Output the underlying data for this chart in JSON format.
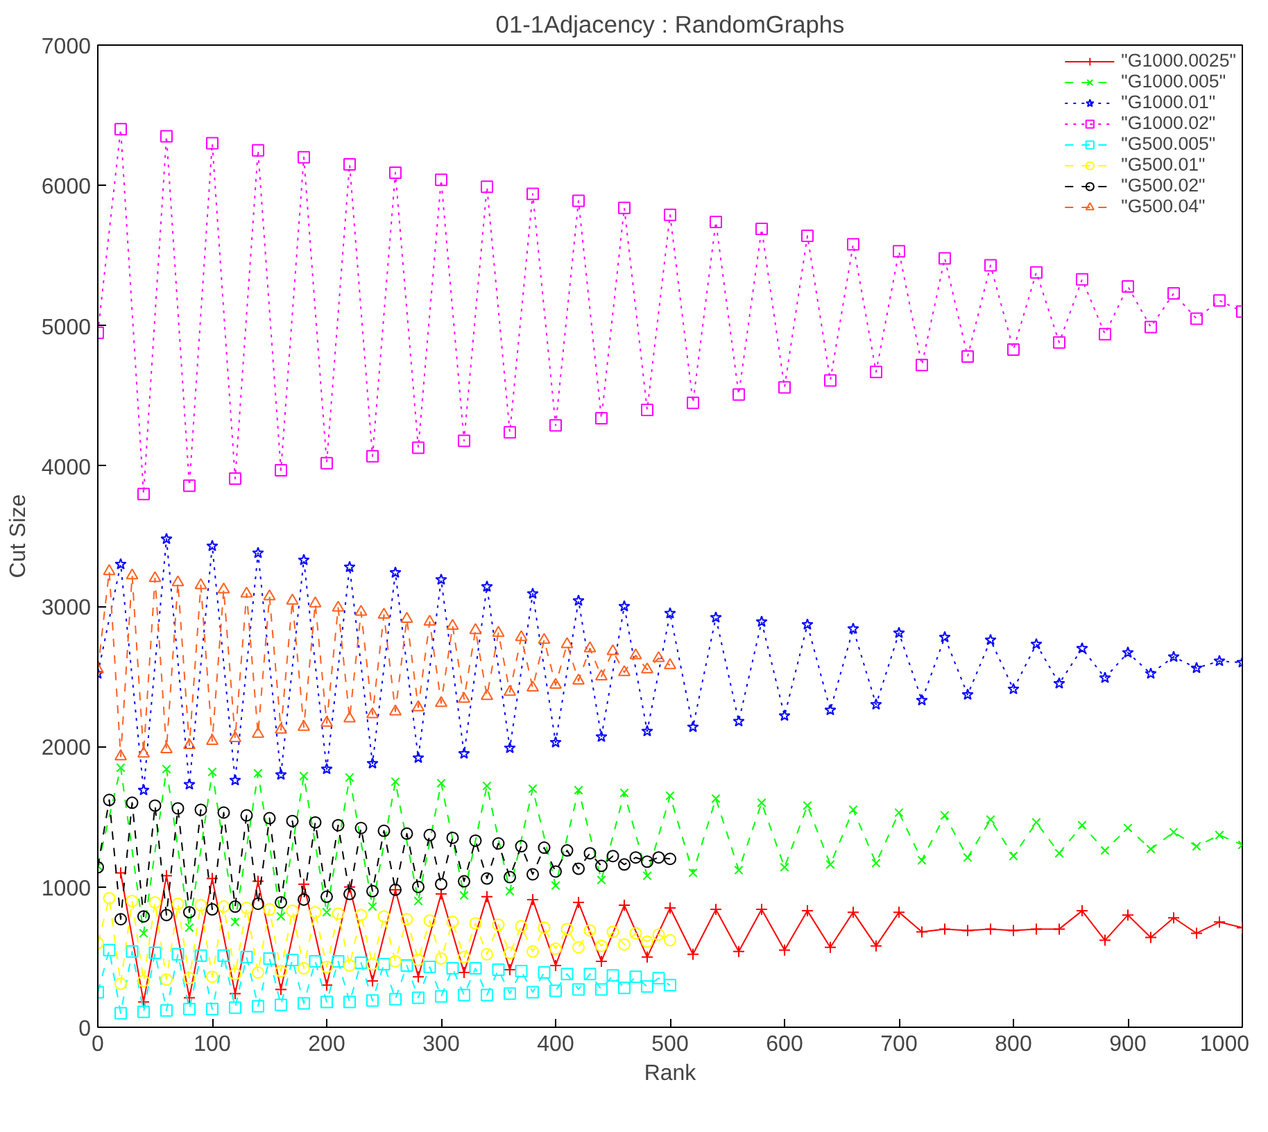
{
  "chart_data": {
    "type": "line",
    "title": "01-1Adjacency : RandomGraphs",
    "xlabel": "Rank",
    "ylabel": "Cut Size",
    "xlim": [
      0,
      1000
    ],
    "ylim": [
      0,
      7000
    ],
    "xticks": [
      0,
      100,
      200,
      300,
      400,
      500,
      600,
      700,
      800,
      900,
      1000
    ],
    "yticks": [
      0,
      1000,
      2000,
      3000,
      4000,
      5000,
      6000,
      7000
    ],
    "grid": false,
    "legend": "top right",
    "series": [
      {
        "name": "\"G1000.0025\"",
        "color": "#ff0000",
        "marker": "cross",
        "line_style": "solid",
        "x": [
          20,
          40,
          60,
          80,
          100,
          120,
          140,
          160,
          180,
          200,
          220,
          240,
          260,
          280,
          300,
          320,
          340,
          360,
          380,
          400,
          420,
          440,
          460,
          480,
          500,
          520,
          540,
          560,
          580,
          600,
          620,
          640,
          660,
          680,
          700,
          720,
          740,
          760,
          780,
          800,
          820,
          840,
          860,
          880,
          900,
          920,
          940,
          960,
          980,
          1000
        ],
        "values": [
          1100,
          180,
          1080,
          210,
          1060,
          240,
          1040,
          270,
          1020,
          300,
          1000,
          330,
          980,
          360,
          950,
          390,
          930,
          410,
          910,
          440,
          890,
          470,
          870,
          500,
          850,
          520,
          840,
          540,
          840,
          550,
          830,
          570,
          820,
          580,
          820,
          680,
          700,
          690,
          700,
          690,
          700,
          700,
          830,
          620,
          800,
          640,
          780,
          670,
          750,
          710
        ]
      },
      {
        "name": "\"G1000.005\"",
        "color": "#00ff00",
        "marker": "x",
        "line_style": "dashed",
        "x": [
          0,
          20,
          40,
          60,
          80,
          100,
          120,
          140,
          160,
          180,
          200,
          220,
          240,
          260,
          280,
          300,
          320,
          340,
          360,
          380,
          400,
          420,
          440,
          460,
          480,
          500,
          520,
          540,
          560,
          580,
          600,
          620,
          640,
          660,
          680,
          700,
          720,
          740,
          760,
          780,
          800,
          820,
          840,
          860,
          880,
          900,
          920,
          940,
          960,
          980,
          1000
        ],
        "values": [
          1150,
          1850,
          670,
          1840,
          710,
          1820,
          750,
          1810,
          790,
          1790,
          820,
          1780,
          860,
          1750,
          900,
          1740,
          940,
          1720,
          970,
          1700,
          1010,
          1690,
          1050,
          1670,
          1080,
          1650,
          1100,
          1630,
          1120,
          1600,
          1140,
          1580,
          1160,
          1550,
          1170,
          1530,
          1190,
          1510,
          1210,
          1480,
          1220,
          1460,
          1240,
          1440,
          1260,
          1420,
          1270,
          1390,
          1290,
          1370,
          1300
        ]
      },
      {
        "name": "\"G1000.01\"",
        "color": "#0000ff",
        "marker": "star",
        "line_style": "dotted",
        "x": [
          0,
          20,
          40,
          60,
          80,
          100,
          120,
          140,
          160,
          180,
          200,
          220,
          240,
          260,
          280,
          300,
          320,
          340,
          360,
          380,
          400,
          420,
          440,
          460,
          480,
          500,
          520,
          540,
          560,
          580,
          600,
          620,
          640,
          660,
          680,
          700,
          720,
          740,
          760,
          780,
          800,
          820,
          840,
          860,
          880,
          900,
          920,
          940,
          960,
          980,
          1000
        ],
        "values": [
          2520,
          3300,
          1690,
          3480,
          1730,
          3430,
          1760,
          3380,
          1800,
          3330,
          1840,
          3280,
          1880,
          3240,
          1920,
          3190,
          1950,
          3140,
          1990,
          3090,
          2030,
          3040,
          2070,
          3000,
          2110,
          2950,
          2140,
          2920,
          2180,
          2890,
          2220,
          2870,
          2260,
          2840,
          2300,
          2810,
          2330,
          2780,
          2370,
          2760,
          2410,
          2730,
          2450,
          2700,
          2490,
          2670,
          2520,
          2640,
          2560,
          2610,
          2600
        ]
      },
      {
        "name": "\"G1000.02\"",
        "color": "#ff00ff",
        "marker": "square",
        "line_style": "dotted",
        "x": [
          0,
          20,
          40,
          60,
          80,
          100,
          120,
          140,
          160,
          180,
          200,
          220,
          240,
          260,
          280,
          300,
          320,
          340,
          360,
          380,
          400,
          420,
          440,
          460,
          480,
          500,
          520,
          540,
          560,
          580,
          600,
          620,
          640,
          660,
          680,
          700,
          720,
          740,
          760,
          780,
          800,
          820,
          840,
          860,
          880,
          900,
          920,
          940,
          960,
          980,
          1000
        ],
        "values": [
          4950,
          6400,
          3800,
          6350,
          3860,
          6300,
          3910,
          6250,
          3970,
          6200,
          4020,
          6150,
          4070,
          6090,
          4130,
          6040,
          4180,
          5990,
          4240,
          5940,
          4290,
          5890,
          4340,
          5840,
          4400,
          5790,
          4450,
          5740,
          4510,
          5690,
          4560,
          5640,
          4610,
          5580,
          4670,
          5530,
          4720,
          5480,
          4780,
          5430,
          4830,
          5380,
          4880,
          5330,
          4940,
          5280,
          4990,
          5230,
          5050,
          5180,
          5100
        ]
      },
      {
        "name": "\"G500.005\"",
        "color": "#00ffff",
        "marker": "square",
        "line_style": "dashed",
        "x": [
          0,
          10,
          20,
          30,
          40,
          50,
          60,
          70,
          80,
          90,
          100,
          110,
          120,
          130,
          140,
          150,
          160,
          170,
          180,
          190,
          200,
          210,
          220,
          230,
          240,
          250,
          260,
          270,
          280,
          290,
          300,
          310,
          320,
          330,
          340,
          350,
          360,
          370,
          380,
          390,
          400,
          410,
          420,
          430,
          440,
          450,
          460,
          470,
          480,
          490,
          500
        ],
        "values": [
          250,
          550,
          100,
          540,
          110,
          530,
          120,
          520,
          130,
          510,
          130,
          510,
          140,
          500,
          150,
          490,
          160,
          480,
          170,
          470,
          180,
          470,
          180,
          460,
          190,
          450,
          200,
          440,
          210,
          430,
          220,
          420,
          230,
          420,
          230,
          410,
          240,
          400,
          250,
          390,
          260,
          380,
          270,
          380,
          270,
          370,
          280,
          360,
          290,
          350,
          300
        ]
      },
      {
        "name": "\"G500.01\"",
        "color": "#ffff00",
        "marker": "circle",
        "line_style": "dashed",
        "x": [
          0,
          10,
          20,
          30,
          40,
          50,
          60,
          70,
          80,
          90,
          100,
          110,
          120,
          130,
          140,
          150,
          160,
          170,
          180,
          190,
          200,
          210,
          220,
          230,
          240,
          250,
          260,
          270,
          280,
          290,
          300,
          310,
          320,
          330,
          340,
          350,
          360,
          370,
          380,
          390,
          400,
          410,
          420,
          430,
          440,
          450,
          460,
          470,
          480,
          490,
          500
        ],
        "values": [
          600,
          920,
          310,
          900,
          330,
          890,
          340,
          880,
          350,
          870,
          360,
          860,
          380,
          850,
          390,
          840,
          400,
          830,
          420,
          820,
          430,
          810,
          440,
          800,
          450,
          790,
          470,
          770,
          480,
          760,
          490,
          750,
          500,
          740,
          520,
          730,
          530,
          720,
          540,
          710,
          560,
          700,
          570,
          690,
          580,
          680,
          590,
          670,
          610,
          660,
          620
        ]
      },
      {
        "name": "\"G500.02\"",
        "color": "#000000",
        "marker": "circle",
        "line_style": "dashed",
        "x": [
          0,
          10,
          20,
          30,
          40,
          50,
          60,
          70,
          80,
          90,
          100,
          110,
          120,
          130,
          140,
          150,
          160,
          170,
          180,
          190,
          200,
          210,
          220,
          230,
          240,
          250,
          260,
          270,
          280,
          290,
          300,
          310,
          320,
          330,
          340,
          350,
          360,
          370,
          380,
          390,
          400,
          410,
          420,
          430,
          440,
          450,
          460,
          470,
          480,
          490,
          500
        ],
        "values": [
          1140,
          1620,
          770,
          1600,
          790,
          1580,
          800,
          1560,
          820,
          1550,
          840,
          1530,
          860,
          1510,
          880,
          1490,
          890,
          1470,
          910,
          1460,
          930,
          1440,
          950,
          1420,
          970,
          1400,
          980,
          1380,
          1000,
          1370,
          1020,
          1350,
          1040,
          1330,
          1060,
          1310,
          1070,
          1290,
          1090,
          1280,
          1110,
          1260,
          1130,
          1240,
          1150,
          1220,
          1160,
          1210,
          1180,
          1210,
          1200
        ]
      },
      {
        "name": "\"G500.04\"",
        "color": "#ff6020",
        "marker": "triangle",
        "line_style": "dashed",
        "x": [
          0,
          10,
          20,
          30,
          40,
          50,
          60,
          70,
          80,
          90,
          100,
          110,
          120,
          130,
          140,
          150,
          160,
          170,
          180,
          190,
          200,
          210,
          220,
          230,
          240,
          250,
          260,
          270,
          280,
          290,
          300,
          310,
          320,
          330,
          340,
          350,
          360,
          370,
          380,
          390,
          400,
          410,
          420,
          430,
          440,
          450,
          460,
          470,
          480,
          490,
          500
        ],
        "values": [
          2550,
          3250,
          1930,
          3220,
          1950,
          3200,
          1980,
          3170,
          2010,
          3150,
          2040,
          3120,
          2060,
          3090,
          2090,
          3070,
          2120,
          3040,
          2140,
          3020,
          2170,
          2990,
          2200,
          2960,
          2230,
          2940,
          2250,
          2910,
          2280,
          2890,
          2310,
          2860,
          2340,
          2830,
          2360,
          2810,
          2390,
          2780,
          2420,
          2760,
          2440,
          2730,
          2470,
          2700,
          2500,
          2680,
          2530,
          2650,
          2550,
          2630,
          2580
        ]
      }
    ]
  }
}
